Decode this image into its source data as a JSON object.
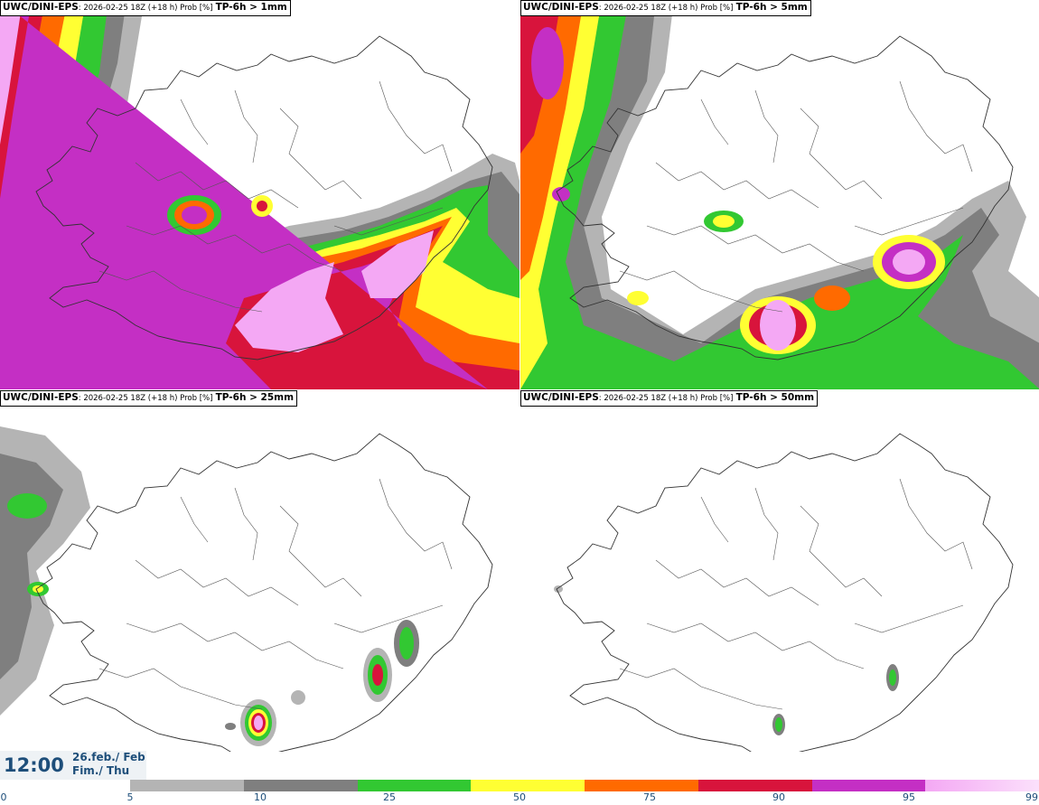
{
  "panels": [
    {
      "model": "UWC/DINI-EPS",
      "meta": ": 2026-02-25 18Z (+18 h) Prob [%]",
      "threshold": "TP-6h > 1mm"
    },
    {
      "model": "UWC/DINI-EPS",
      "meta": ": 2026-02-25 18Z (+18 h) Prob [%]",
      "threshold": "TP-6h > 5mm"
    },
    {
      "model": "UWC/DINI-EPS",
      "meta": ": 2026-02-25 18Z (+18 h) Prob [%]",
      "threshold": "TP-6h > 25mm"
    },
    {
      "model": "UWC/DINI-EPS",
      "meta": ": 2026-02-25 18Z (+18 h) Prob [%]",
      "threshold": "TP-6h > 50mm"
    }
  ],
  "time": "12:00",
  "date_line1": "26.feb./ Feb",
  "date_line2": "Fim./ Thu",
  "legend": {
    "ticks": [
      "0",
      "5",
      "10",
      "25",
      "50",
      "75",
      "90",
      "95",
      "99"
    ],
    "bins": [
      {
        "from": 5,
        "to": 10,
        "color": "#b4b4b4"
      },
      {
        "from": 10,
        "to": 25,
        "color": "#7f7f7f"
      },
      {
        "from": 25,
        "to": 50,
        "color": "#32c832"
      },
      {
        "from": 50,
        "to": 75,
        "color": "#ffff33"
      },
      {
        "from": 75,
        "to": 90,
        "color": "#ff6a00"
      },
      {
        "from": 90,
        "to": 95,
        "color": "#d8143c"
      },
      {
        "from": 95,
        "to": 99,
        "color": "#c42fc4"
      },
      {
        "from": 99,
        "to": 100,
        "color": "#f4a8f4"
      }
    ]
  }
}
